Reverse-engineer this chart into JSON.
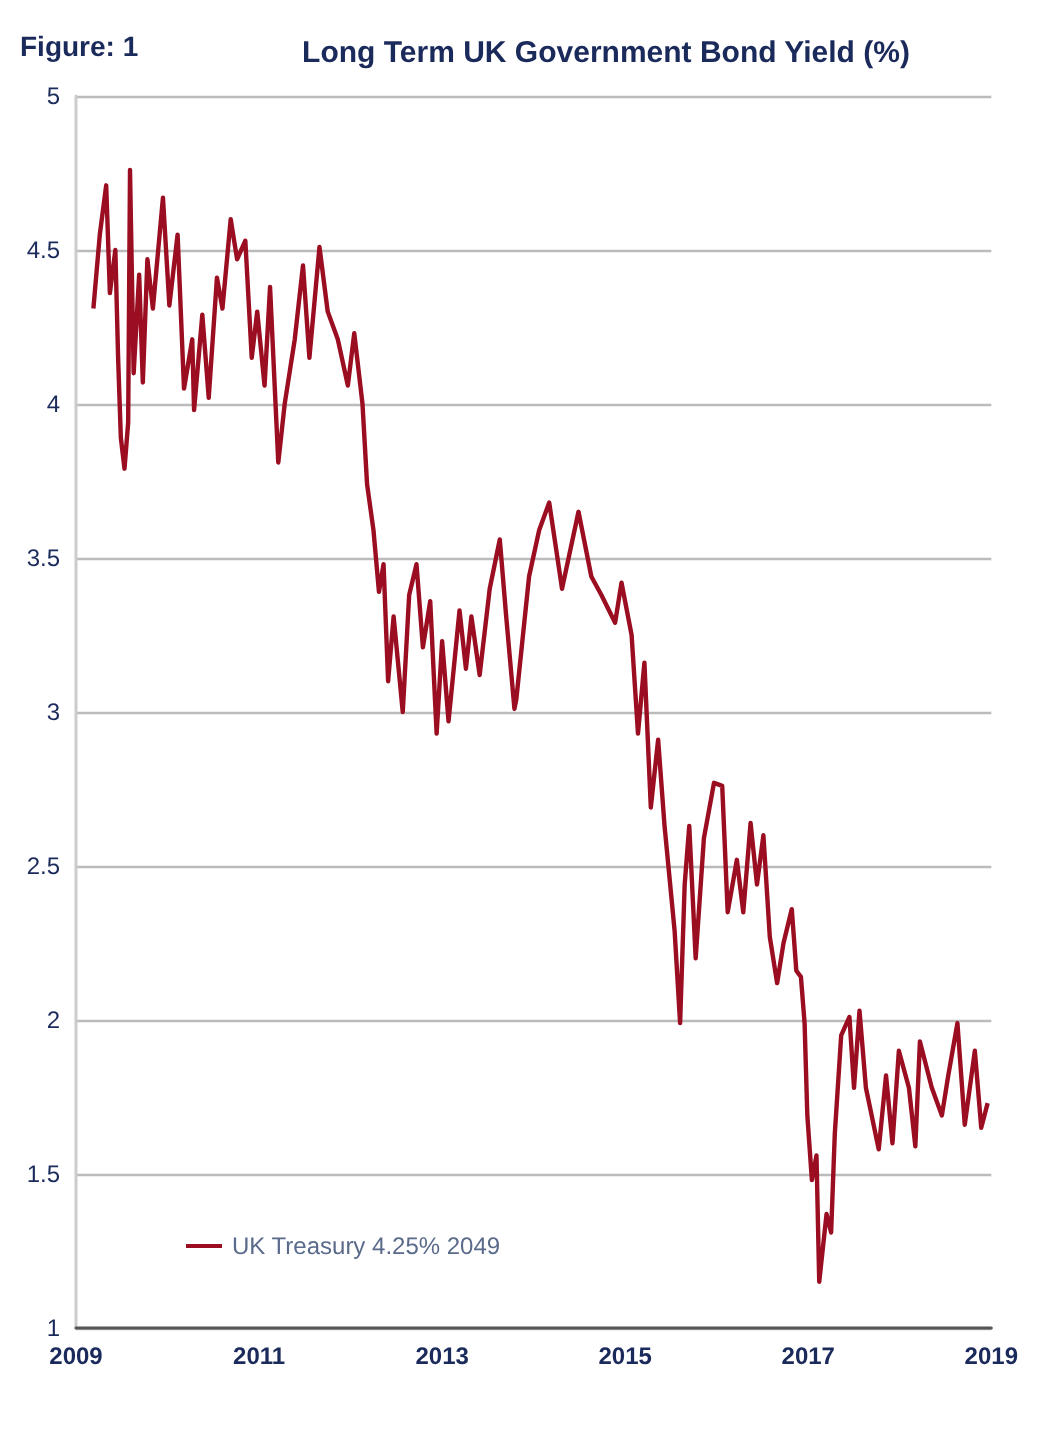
{
  "chart_data": {
    "type": "line",
    "title": "Long Term UK Government Bond Yield (%)",
    "annotations": [
      "Figure: 1"
    ],
    "xlim": [
      2009,
      2019
    ],
    "xticks": [
      2009,
      2011,
      2013,
      2015,
      2017,
      2019
    ],
    "ylim": [
      1,
      5
    ],
    "yticks": [
      1,
      1.5,
      2,
      2.5,
      3,
      3.5,
      4,
      4.5,
      5
    ],
    "grid": "y",
    "legend": "bottom left",
    "marker": "none",
    "line_style": "solid",
    "series": [
      {
        "name": "UK Treasury 4.25% 2049",
        "color": "#9b0d20",
        "x": [
          2009.19,
          2009.26,
          2009.33,
          2009.37,
          2009.43,
          2009.46,
          2009.49,
          2009.53,
          2009.57,
          2009.59,
          2009.63,
          2009.69,
          2009.73,
          2009.78,
          2009.84,
          2009.95,
          2010.02,
          2010.11,
          2010.18,
          2010.27,
          2010.29,
          2010.38,
          2010.45,
          2010.54,
          2010.6,
          2010.69,
          2010.76,
          2010.85,
          2010.92,
          2010.98,
          2011.06,
          2011.12,
          2011.21,
          2011.28,
          2011.39,
          2011.48,
          2011.55,
          2011.66,
          2011.75,
          2011.86,
          2011.97,
          2012.04,
          2012.13,
          2012.18,
          2012.25,
          2012.31,
          2012.36,
          2012.41,
          2012.47,
          2012.57,
          2012.64,
          2012.72,
          2012.79,
          2012.87,
          2012.94,
          2013.0,
          2013.07,
          2013.19,
          2013.26,
          2013.32,
          2013.41,
          2013.52,
          2013.63,
          2013.7,
          2013.79,
          2013.81,
          2013.95,
          2014.06,
          2014.17,
          2014.31,
          2014.49,
          2014.63,
          2014.74,
          2014.89,
          2014.96,
          2015.07,
          2015.14,
          2015.21,
          2015.28,
          2015.36,
          2015.43,
          2015.54,
          2015.6,
          2015.65,
          2015.7,
          2015.77,
          2015.86,
          2015.97,
          2016.06,
          2016.12,
          2016.22,
          2016.29,
          2016.37,
          2016.44,
          2016.51,
          2016.58,
          2016.66,
          2016.73,
          2016.82,
          2016.87,
          2016.92,
          2016.96,
          2016.99,
          2017.04,
          2017.09,
          2017.12,
          2017.2,
          2017.25,
          2017.29,
          2017.36,
          2017.45,
          2017.5,
          2017.56,
          2017.63,
          2017.77,
          2017.85,
          2017.92,
          2017.99,
          2018.1,
          2018.17,
          2018.22,
          2018.35,
          2018.46,
          2018.53,
          2018.63,
          2018.71,
          2018.82,
          2018.89,
          2018.96
        ],
        "values": [
          4.31,
          4.55,
          4.71,
          4.36,
          4.5,
          4.15,
          3.89,
          3.79,
          3.94,
          4.76,
          4.1,
          4.42,
          4.07,
          4.47,
          4.31,
          4.67,
          4.32,
          4.55,
          4.05,
          4.21,
          3.98,
          4.29,
          4.02,
          4.41,
          4.31,
          4.6,
          4.47,
          4.53,
          4.15,
          4.3,
          4.06,
          4.38,
          3.81,
          4.0,
          4.21,
          4.45,
          4.15,
          4.51,
          4.3,
          4.21,
          4.06,
          4.23,
          4.0,
          3.74,
          3.59,
          3.39,
          3.48,
          3.1,
          3.31,
          3.0,
          3.38,
          3.48,
          3.21,
          3.36,
          2.93,
          3.23,
          2.97,
          3.33,
          3.14,
          3.31,
          3.12,
          3.4,
          3.56,
          3.31,
          3.01,
          3.04,
          3.44,
          3.59,
          3.68,
          3.4,
          3.65,
          3.44,
          3.38,
          3.29,
          3.42,
          3.25,
          2.93,
          3.16,
          2.69,
          2.91,
          2.63,
          2.29,
          1.99,
          2.44,
          2.63,
          2.2,
          2.59,
          2.77,
          2.76,
          2.35,
          2.52,
          2.35,
          2.64,
          2.44,
          2.6,
          2.27,
          2.12,
          2.25,
          2.36,
          2.16,
          2.14,
          1.99,
          1.69,
          1.48,
          1.56,
          1.15,
          1.37,
          1.31,
          1.63,
          1.95,
          2.01,
          1.78,
          2.03,
          1.78,
          1.58,
          1.82,
          1.6,
          1.9,
          1.78,
          1.59,
          1.93,
          1.78,
          1.69,
          1.82,
          1.99,
          1.66,
          1.9,
          1.65,
          1.73
        ]
      }
    ]
  }
}
